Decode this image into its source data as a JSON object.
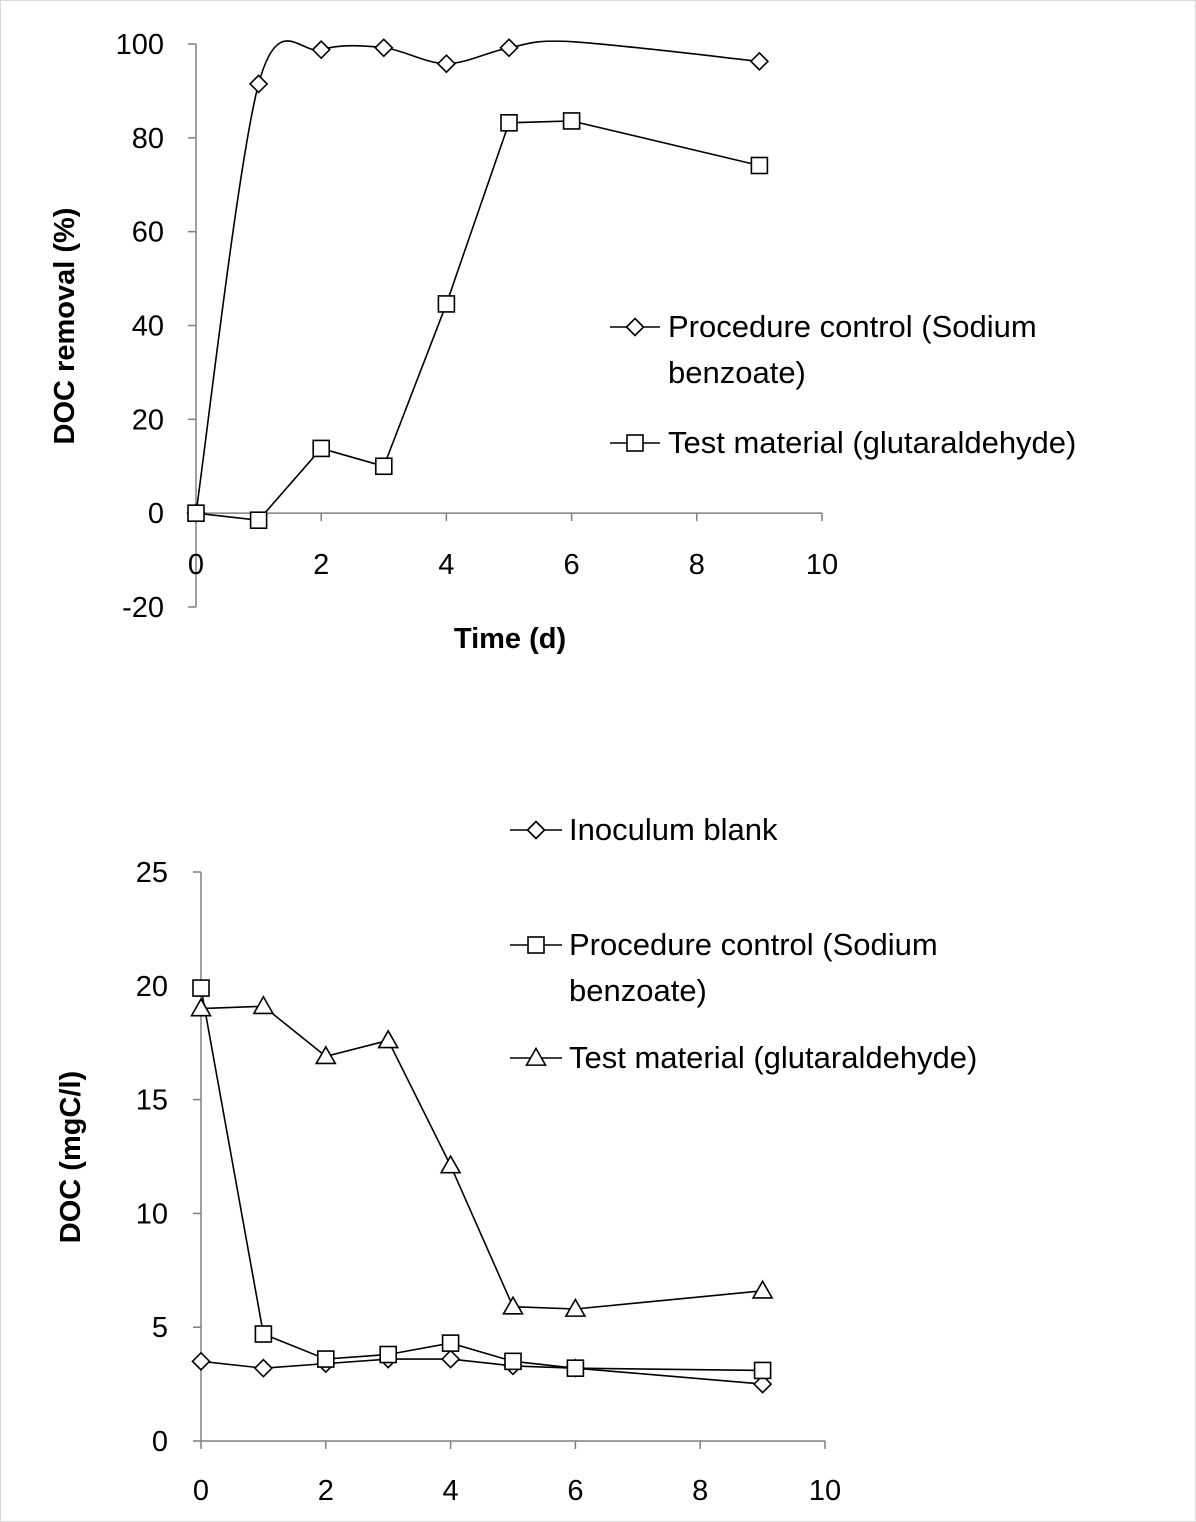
{
  "chart_data": [
    {
      "type": "line",
      "xlabel": "Time  (d)",
      "ylabel": "DOC removal (%)",
      "xlim": [
        0,
        10
      ],
      "ylim": [
        -20,
        100
      ],
      "xticks": [
        "0",
        "2",
        "4",
        "6",
        "8",
        "10"
      ],
      "yticks": [
        "-20",
        "0",
        "20",
        "40",
        "60",
        "80",
        "100"
      ],
      "grid": false,
      "legend_placement": "right",
      "series": [
        {
          "name": "Procedure control (Sodium benzoate)",
          "legend_lines": [
            "Procedure control (Sodium",
            "benzoate)"
          ],
          "marker": "diamond",
          "smooth": true,
          "x": [
            0,
            1,
            2,
            3,
            4,
            5,
            6,
            9
          ],
          "y": [
            0,
            91.5,
            98.8,
            99.2,
            95.8,
            99.2,
            100.5,
            96.3
          ],
          "marker_x": [
            0,
            1,
            2,
            3,
            4,
            5,
            9
          ],
          "marker_y": [
            0,
            91.5,
            98.8,
            99.2,
            95.8,
            99.2,
            96.3
          ]
        },
        {
          "name": "Test material (glutaraldehyde)",
          "legend_lines": [
            "Test material (glutaraldehyde)"
          ],
          "marker": "square",
          "smooth": false,
          "x": [
            0,
            1,
            2,
            3,
            4,
            5,
            6,
            9
          ],
          "y": [
            0,
            -1.5,
            13.8,
            10,
            44.6,
            83.2,
            83.6,
            74.1
          ],
          "marker_x": [
            0,
            1,
            2,
            3,
            4,
            5,
            6,
            9
          ],
          "marker_y": [
            0,
            -1.5,
            13.8,
            10,
            44.6,
            83.2,
            83.6,
            74.1
          ]
        }
      ]
    },
    {
      "type": "line",
      "xlabel": "",
      "ylabel": "DOC (mgC/l)",
      "xlim": [
        0,
        10
      ],
      "ylim": [
        0,
        25
      ],
      "xticks": [
        "0",
        "2",
        "4",
        "6",
        "8",
        "10"
      ],
      "yticks": [
        "0",
        "5",
        "10",
        "15",
        "20",
        "25"
      ],
      "grid": false,
      "legend_placement": "top-right",
      "series": [
        {
          "name": "Inoculum blank",
          "legend_lines": [
            "Inoculum blank"
          ],
          "marker": "diamond",
          "smooth": false,
          "x": [
            0,
            1,
            2,
            3,
            4,
            5,
            6,
            9
          ],
          "y": [
            3.5,
            3.2,
            3.4,
            3.6,
            3.6,
            3.3,
            3.2,
            2.5
          ],
          "marker_x": [
            0,
            1,
            2,
            3,
            4,
            5,
            6,
            9
          ],
          "marker_y": [
            3.5,
            3.2,
            3.4,
            3.6,
            3.6,
            3.3,
            3.2,
            2.5
          ]
        },
        {
          "name": "Procedure control (Sodium benzoate)",
          "legend_lines": [
            "Procedure control (Sodium",
            "benzoate)"
          ],
          "marker": "square",
          "smooth": false,
          "x": [
            0,
            1,
            2,
            3,
            4,
            5,
            6,
            9
          ],
          "y": [
            19.9,
            4.7,
            3.6,
            3.8,
            4.3,
            3.5,
            3.2,
            3.1
          ],
          "marker_x": [
            0,
            1,
            2,
            3,
            4,
            5,
            6,
            9
          ],
          "marker_y": [
            19.9,
            4.7,
            3.6,
            3.8,
            4.3,
            3.5,
            3.2,
            3.1
          ]
        },
        {
          "name": "Test material (glutaraldehyde)",
          "legend_lines": [
            "Test material (glutaraldehyde)"
          ],
          "marker": "triangle",
          "smooth": false,
          "x": [
            0,
            1,
            2,
            3,
            4,
            5,
            6,
            9
          ],
          "y": [
            19,
            19.1,
            16.9,
            17.6,
            12.1,
            5.9,
            5.8,
            6.6
          ],
          "marker_x": [
            0,
            1,
            2,
            3,
            4,
            5,
            6,
            9
          ],
          "marker_y": [
            19,
            19.1,
            16.9,
            17.6,
            12.1,
            5.9,
            5.8,
            6.6
          ]
        }
      ]
    }
  ]
}
